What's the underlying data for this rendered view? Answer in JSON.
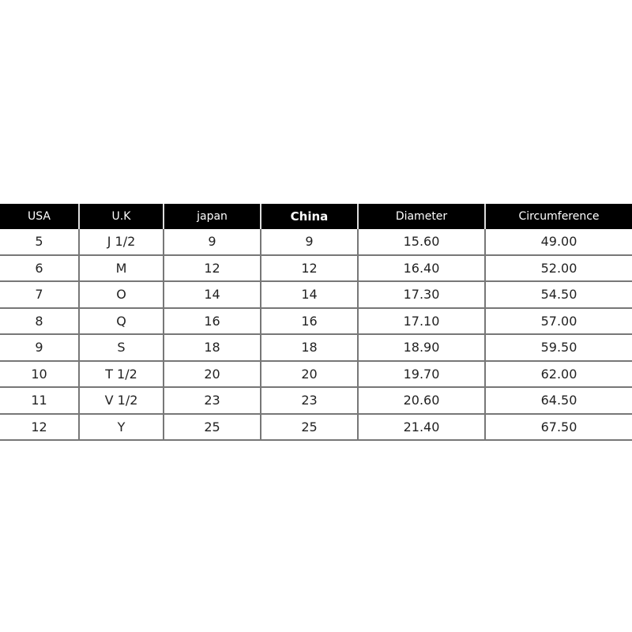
{
  "table": {
    "headers": [
      "USA",
      "U.K",
      "japan",
      "China",
      "Diameter",
      "Circumference"
    ],
    "rows": [
      [
        "5",
        "J 1/2",
        "9",
        "9",
        "15.60",
        "49.00"
      ],
      [
        "6",
        "M",
        "12",
        "12",
        "16.40",
        "52.00"
      ],
      [
        "7",
        "O",
        "14",
        "14",
        "17.30",
        "54.50"
      ],
      [
        "8",
        "Q",
        "16",
        "16",
        "17.10",
        "57.00"
      ],
      [
        "9",
        "S",
        "18",
        "18",
        "18.90",
        "59.50"
      ],
      [
        "10",
        "T 1/2",
        "20",
        "20",
        "19.70",
        "62.00"
      ],
      [
        "11",
        "V 1/2",
        "23",
        "23",
        "20.60",
        "64.50"
      ],
      [
        "12",
        "Y",
        "25",
        "25",
        "21.40",
        "67.50"
      ]
    ]
  }
}
